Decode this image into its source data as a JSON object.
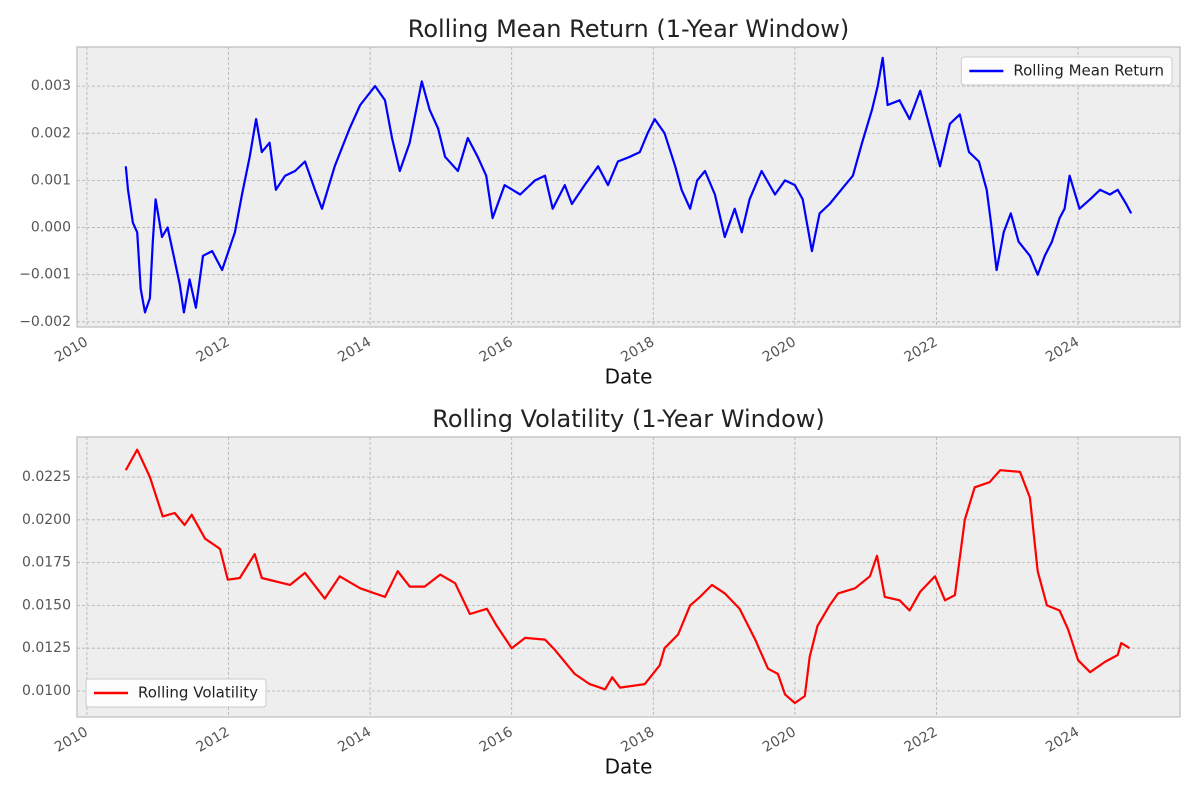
{
  "chart_data": [
    {
      "type": "line",
      "title": "Rolling Mean Return (1-Year Window)",
      "x_label": "Date",
      "x": [
        2010.55,
        2010.58,
        2010.65,
        2010.71,
        2010.76,
        2010.82,
        2010.89,
        2010.93,
        2010.97,
        2011.06,
        2011.14,
        2011.24,
        2011.31,
        2011.37,
        2011.45,
        2011.54,
        2011.64,
        2011.77,
        2011.91,
        2012.09,
        2012.19,
        2012.3,
        2012.39,
        2012.47,
        2012.58,
        2012.67,
        2012.8,
        2012.94,
        2013.08,
        2013.22,
        2013.32,
        2013.5,
        2013.71,
        2013.86,
        2014.07,
        2014.21,
        2014.31,
        2014.42,
        2014.56,
        2014.73,
        2014.84,
        2014.96,
        2015.06,
        2015.24,
        2015.38,
        2015.52,
        2015.64,
        2015.73,
        2015.9,
        2016.12,
        2016.33,
        2016.47,
        2016.58,
        2016.75,
        2016.85,
        2017.03,
        2017.22,
        2017.36,
        2017.5,
        2017.67,
        2017.81,
        2017.92,
        2018.02,
        2018.16,
        2018.31,
        2018.4,
        2018.52,
        2018.62,
        2018.73,
        2018.87,
        2019.01,
        2019.15,
        2019.25,
        2019.36,
        2019.53,
        2019.72,
        2019.86,
        2020.0,
        2020.11,
        2020.24,
        2020.35,
        2020.49,
        2020.71,
        2020.82,
        2020.95,
        2021.09,
        2021.17,
        2021.24,
        2021.31,
        2021.48,
        2021.62,
        2021.77,
        2021.91,
        2022.05,
        2022.19,
        2022.33,
        2022.46,
        2022.6,
        2022.71,
        2022.77,
        2022.85,
        2022.95,
        2023.05,
        2023.16,
        2023.32,
        2023.43,
        2023.53,
        2023.63,
        2023.74,
        2023.81,
        2023.88,
        2024.02,
        2024.17,
        2024.31,
        2024.45,
        2024.56,
        2024.68,
        2024.75
      ],
      "series": [
        {
          "name": "Rolling Mean Return",
          "color": "#0000ff",
          "values": [
            0.0013,
            0.0008,
            0.0001,
            -0.0001,
            -0.0013,
            -0.0018,
            -0.0015,
            -0.0003,
            0.0006,
            -0.0002,
            0.0,
            -0.0007,
            -0.0012,
            -0.0018,
            -0.0011,
            -0.0017,
            -0.0006,
            -0.0005,
            -0.0009,
            -0.0001,
            0.0007,
            0.0015,
            0.0023,
            0.0016,
            0.0018,
            0.0008,
            0.0011,
            0.0012,
            0.0014,
            0.0008,
            0.0004,
            0.0013,
            0.0021,
            0.0026,
            0.003,
            0.0027,
            0.0019,
            0.0012,
            0.0018,
            0.0031,
            0.0025,
            0.0021,
            0.0015,
            0.0012,
            0.0019,
            0.0015,
            0.0011,
            0.0002,
            0.0009,
            0.0007,
            0.001,
            0.0011,
            0.0004,
            0.0009,
            0.0005,
            0.0009,
            0.0013,
            0.0009,
            0.0014,
            0.0015,
            0.0016,
            0.002,
            0.0023,
            0.002,
            0.0013,
            0.0008,
            0.0004,
            0.001,
            0.0012,
            0.0007,
            -0.0002,
            0.0004,
            -0.0001,
            0.0006,
            0.0012,
            0.0007,
            0.001,
            0.0009,
            0.0006,
            -0.0005,
            0.0003,
            0.0005,
            0.0009,
            0.0011,
            0.0018,
            0.0025,
            0.003,
            0.0036,
            0.0026,
            0.0027,
            0.0023,
            0.0029,
            0.0021,
            0.0013,
            0.0022,
            0.0024,
            0.0016,
            0.0014,
            0.0008,
            0.0001,
            -0.0009,
            -0.0001,
            0.0003,
            -0.0003,
            -0.0006,
            -0.001,
            -0.0006,
            -0.0003,
            0.0002,
            0.0004,
            0.0011,
            0.0004,
            0.0006,
            0.0008,
            0.0007,
            0.0008,
            0.0005,
            0.0003
          ]
        }
      ],
      "xlim": [
        2009.86,
        2025.44
      ],
      "xticks": [
        2010,
        2012,
        2014,
        2016,
        2018,
        2020,
        2022,
        2024
      ],
      "ylim": [
        -0.00211,
        0.00383
      ],
      "yticks": [
        {
          "value": -0.002,
          "label": "−0.002"
        },
        {
          "value": -0.001,
          "label": "−0.001"
        },
        {
          "value": 0,
          "label": "0.000"
        },
        0.001,
        0.002,
        0.003
      ],
      "grid": true,
      "legend": "upper right"
    },
    {
      "type": "line",
      "title": "Rolling Volatility (1-Year Window)",
      "x_label": "Date",
      "x": [
        2010.55,
        2010.71,
        2010.89,
        2011.07,
        2011.24,
        2011.38,
        2011.48,
        2011.67,
        2011.88,
        2011.99,
        2012.16,
        2012.37,
        2012.47,
        2012.87,
        2013.08,
        2013.36,
        2013.57,
        2013.86,
        2014.21,
        2014.39,
        2014.56,
        2014.77,
        2014.99,
        2015.2,
        2015.41,
        2015.65,
        2015.79,
        2016.0,
        2016.19,
        2016.47,
        2016.61,
        2016.75,
        2016.89,
        2017.1,
        2017.32,
        2017.42,
        2017.53,
        2017.88,
        2018.09,
        2018.16,
        2018.35,
        2018.52,
        2018.66,
        2018.83,
        2019.01,
        2019.22,
        2019.44,
        2019.62,
        2019.76,
        2019.86,
        2020.0,
        2020.14,
        2020.21,
        2020.32,
        2020.49,
        2020.61,
        2020.85,
        2021.06,
        2021.16,
        2021.27,
        2021.48,
        2021.62,
        2021.77,
        2021.98,
        2022.12,
        2022.26,
        2022.4,
        2022.54,
        2022.75,
        2022.9,
        2023.18,
        2023.32,
        2023.43,
        2023.56,
        2023.74,
        2023.86,
        2024.0,
        2024.17,
        2024.38,
        2024.56,
        2024.61,
        2024.73
      ],
      "series": [
        {
          "name": "Rolling Volatility",
          "color": "#ff0000",
          "values": [
            0.0229,
            0.0241,
            0.0225,
            0.0202,
            0.0204,
            0.0197,
            0.0203,
            0.0189,
            0.0183,
            0.0165,
            0.0166,
            0.018,
            0.0166,
            0.0162,
            0.0169,
            0.0154,
            0.0167,
            0.016,
            0.0155,
            0.017,
            0.0161,
            0.0161,
            0.0168,
            0.0163,
            0.0145,
            0.0148,
            0.0138,
            0.0125,
            0.0131,
            0.013,
            0.0124,
            0.0117,
            0.011,
            0.0104,
            0.0101,
            0.0108,
            0.0102,
            0.0104,
            0.0115,
            0.0125,
            0.0133,
            0.015,
            0.0155,
            0.0162,
            0.0157,
            0.0148,
            0.013,
            0.0113,
            0.011,
            0.0098,
            0.0093,
            0.0097,
            0.012,
            0.0138,
            0.015,
            0.0157,
            0.016,
            0.0167,
            0.0179,
            0.0155,
            0.0153,
            0.0147,
            0.0158,
            0.0167,
            0.0153,
            0.0156,
            0.02,
            0.0219,
            0.0222,
            0.0229,
            0.0228,
            0.0213,
            0.017,
            0.015,
            0.0147,
            0.0136,
            0.0118,
            0.0111,
            0.0117,
            0.0121,
            0.0128,
            0.0125
          ]
        }
      ],
      "xlim": [
        2009.86,
        2025.44
      ],
      "xticks": [
        2010,
        2012,
        2014,
        2016,
        2018,
        2020,
        2022,
        2024
      ],
      "ylim": [
        0.00848,
        0.02484
      ],
      "yticks": [
        {
          "value": 0.01,
          "label": "0.0100"
        },
        0.0125,
        {
          "value": 0.015,
          "label": "0.0150"
        },
        0.0175,
        {
          "value": 0.02,
          "label": "0.0200"
        },
        0.0225
      ],
      "grid": true,
      "legend": "lower left"
    }
  ]
}
